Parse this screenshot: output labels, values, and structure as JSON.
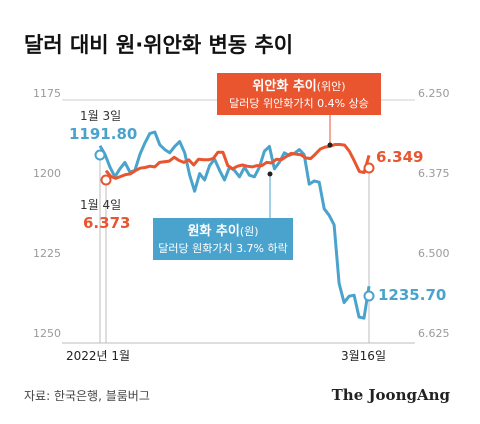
{
  "title": "달러 대비 원·위안화 변동 추이",
  "source": "자료: 한국은행, 블룸버그",
  "brand": "The JoongAng",
  "colors": {
    "krw": "#4aa3cc",
    "cny": "#e8552f",
    "axis": "#bfbfbf"
  },
  "chart_data": {
    "type": "line",
    "left_axis": {
      "ticks": [
        "1175",
        "1200",
        "1225",
        "1250"
      ],
      "ylim": [
        1175,
        1250
      ],
      "inverted": true
    },
    "right_axis": {
      "ticks": [
        "6.250",
        "6.375",
        "6.500",
        "6.625"
      ],
      "ylim": [
        6.25,
        6.625
      ],
      "inverted": true
    },
    "x_labels": [
      "2022년 1월",
      "3월16일"
    ],
    "series": [
      {
        "name": "원화 추이(원)",
        "axis": "left",
        "values": [
          1191.8,
          1194.5,
          1198.5,
          1201.5,
          1199.0,
          1197.0,
          1200.0,
          1199.5,
          1194.5,
          1191.0,
          1188.0,
          1187.5,
          1191.5,
          1193.0,
          1194.0,
          1192.0,
          1190.5,
          1194.0,
          1201.0,
          1206.0,
          1200.5,
          1202.5,
          1198.0,
          1196.0,
          1199.5,
          1202.5,
          1198.5,
          1199.5,
          1201.5,
          1198.5,
          1201.0,
          1201.5,
          1198.5,
          1193.5,
          1192.0,
          1199.0,
          1197.0,
          1194.0,
          1194.8,
          1194.2,
          1193.0,
          1194.6,
          1203.8,
          1202.8,
          1203.2,
          1211.5,
          1213.5,
          1216.5,
          1234.8,
          1240.8,
          1238.8,
          1238.5,
          1245.3,
          1245.7,
          1235.7
        ]
      },
      {
        "name": "위안화 추이(위안)",
        "axis": "right",
        "values": [
          6.373,
          6.382,
          6.385,
          6.382,
          6.379,
          6.378,
          6.373,
          6.369,
          6.368,
          6.366,
          6.367,
          6.36,
          6.359,
          6.358,
          6.352,
          6.357,
          6.36,
          6.356,
          6.364,
          6.355,
          6.356,
          6.356,
          6.354,
          6.344,
          6.344,
          6.365,
          6.37,
          6.366,
          6.364,
          6.366,
          6.367,
          6.365,
          6.365,
          6.36,
          6.361,
          6.355,
          6.356,
          6.351,
          6.346,
          6.347,
          6.348,
          6.353,
          6.354,
          6.347,
          6.339,
          6.336,
          6.335,
          6.332,
          6.332,
          6.333,
          6.343,
          6.358,
          6.374,
          6.376,
          6.349
        ]
      }
    ],
    "annotations": [
      {
        "series": "원화 추이(원)",
        "label": "1월 3일",
        "value": "1191.80"
      },
      {
        "series": "위안화 추이(위안)",
        "label": "1월 4일",
        "value": "6.373"
      },
      {
        "series": "원화 추이(원)",
        "label": "",
        "value": "1235.70"
      },
      {
        "series": "위안화 추이(위안)",
        "label": "",
        "value": "6.349"
      }
    ],
    "callouts": {
      "cny": {
        "title": "위안화 추이",
        "unit": "(위안)",
        "note": "달러당 위안화가치 0.4% 상승"
      },
      "krw": {
        "title": "원화 추이",
        "unit": "(원)",
        "note": "달러당 원화가치 3.7% 하락"
      }
    }
  }
}
